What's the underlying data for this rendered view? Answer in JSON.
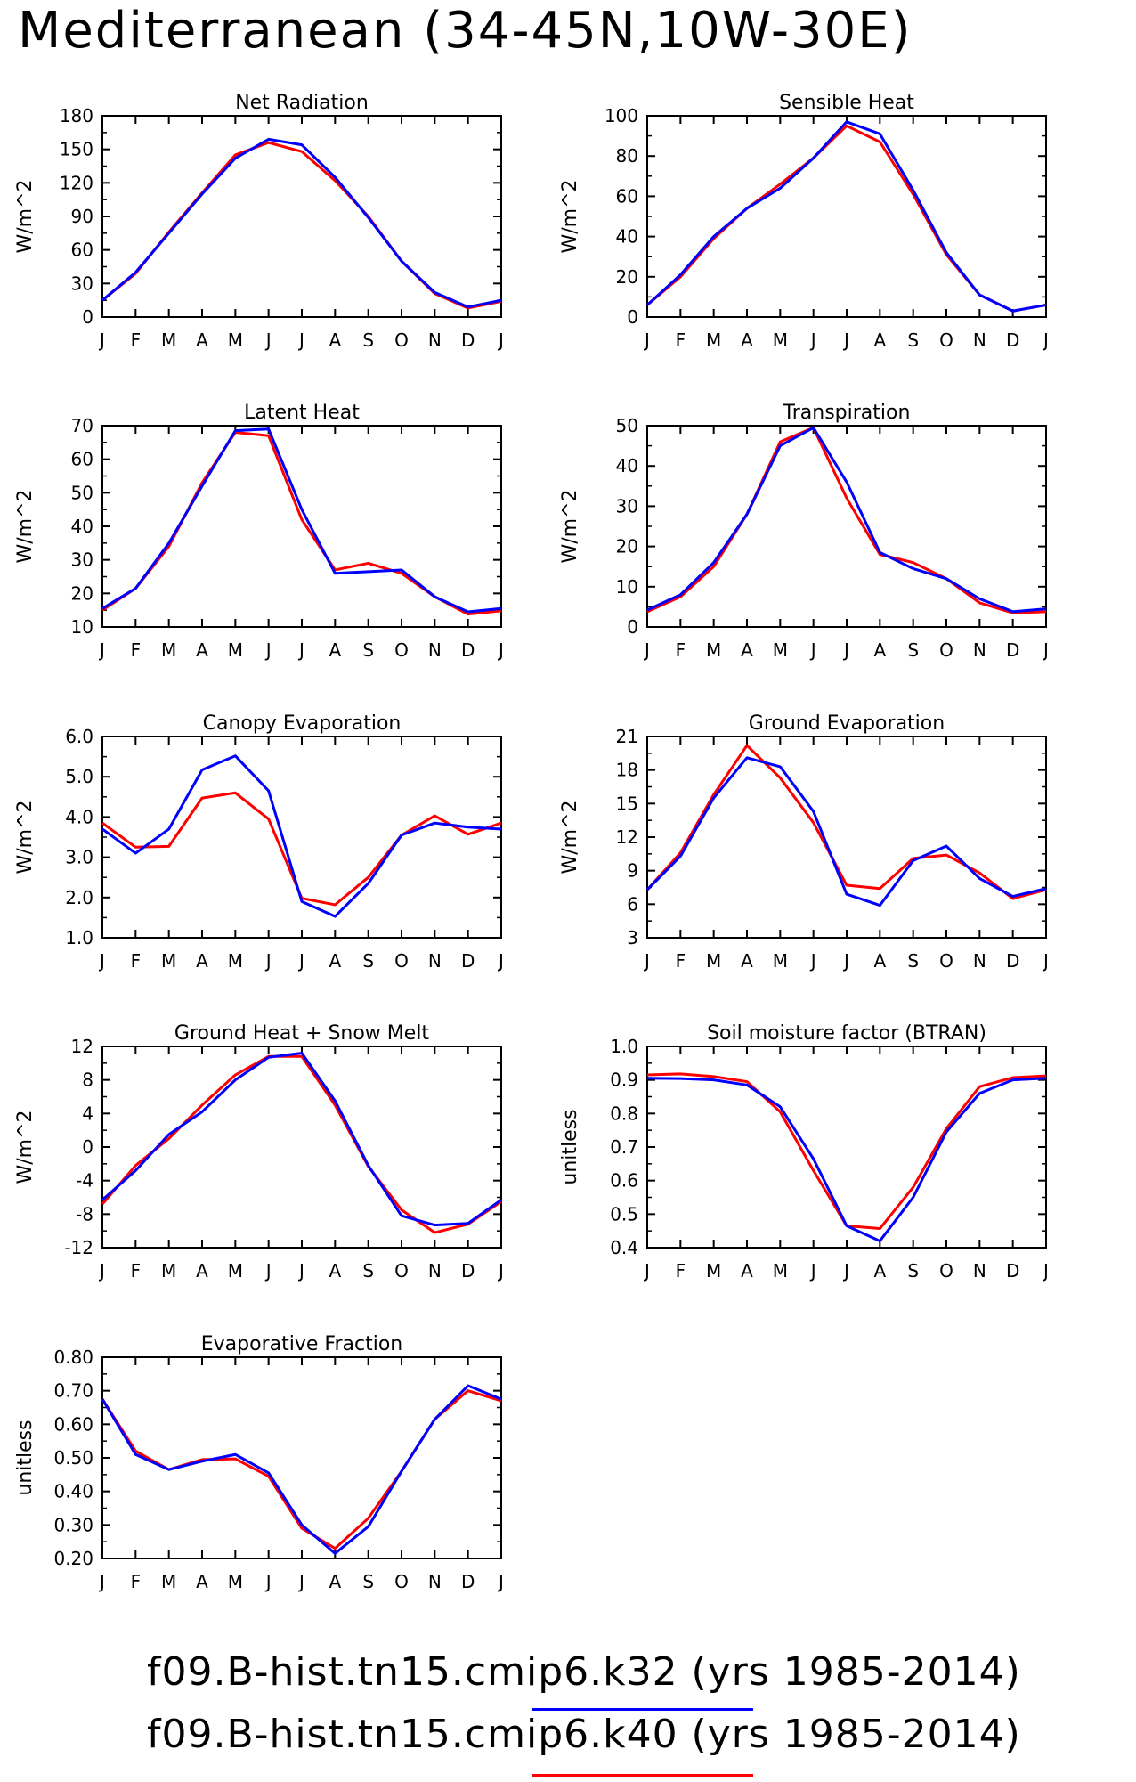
{
  "title": "Mediterranean (34-45N,10W-30E)",
  "colors": {
    "k40": "#ff0000",
    "k32": "#0000ff"
  },
  "legend": [
    {
      "label": "f09.B-hist.tn15.cmip6.k32 (yrs 1985-2014)",
      "color": "#0000ff"
    },
    {
      "label": "f09.B-hist.tn15.cmip6.k40 (yrs 1985-2014)",
      "color": "#ff0000"
    }
  ],
  "chart_data": [
    {
      "type": "line",
      "title": "Net Radiation",
      "ylabel": "W/m^2",
      "categories": [
        "J",
        "F",
        "M",
        "A",
        "M",
        "J",
        "J",
        "A",
        "S",
        "O",
        "N",
        "D",
        "J"
      ],
      "ylim": [
        0,
        180
      ],
      "yticks": [
        "0",
        "30",
        "60",
        "90",
        "120",
        "150",
        "180"
      ],
      "series": [
        {
          "color": "#ff0000",
          "values": [
            15,
            39,
            76,
            111,
            145,
            156,
            148,
            122,
            90,
            50,
            21,
            8,
            14
          ]
        },
        {
          "color": "#0000ff",
          "values": [
            15,
            40,
            75,
            110,
            142,
            159,
            154,
            125,
            89,
            50,
            22,
            9,
            15
          ]
        }
      ]
    },
    {
      "type": "line",
      "title": "Sensible Heat",
      "ylabel": "W/m^2",
      "categories": [
        "J",
        "F",
        "M",
        "A",
        "M",
        "J",
        "J",
        "A",
        "S",
        "O",
        "N",
        "D",
        "J"
      ],
      "ylim": [
        0,
        100
      ],
      "yticks": [
        "0",
        "20",
        "40",
        "60",
        "80",
        "100"
      ],
      "series": [
        {
          "color": "#ff0000",
          "values": [
            6,
            20,
            39,
            54,
            66,
            79,
            95,
            87,
            61,
            31,
            11,
            3,
            6
          ]
        },
        {
          "color": "#0000ff",
          "values": [
            6,
            21,
            40,
            54,
            64,
            79,
            97,
            91,
            63,
            32,
            11,
            3,
            6
          ]
        }
      ]
    },
    {
      "type": "line",
      "title": "Latent Heat",
      "ylabel": "W/m^2",
      "categories": [
        "J",
        "F",
        "M",
        "A",
        "M",
        "J",
        "J",
        "A",
        "S",
        "O",
        "N",
        "D",
        "J"
      ],
      "ylim": [
        10,
        70
      ],
      "yticks": [
        "10",
        "20",
        "30",
        "40",
        "50",
        "60",
        "70"
      ],
      "series": [
        {
          "color": "#ff0000",
          "values": [
            15,
            21.5,
            34,
            53,
            68,
            67,
            42,
            27,
            29,
            26,
            19,
            13.8,
            14.8
          ]
        },
        {
          "color": "#0000ff",
          "values": [
            15.5,
            21.5,
            35,
            52,
            68.5,
            69,
            45,
            26,
            26.5,
            27,
            19,
            14.5,
            15.5
          ]
        }
      ]
    },
    {
      "type": "line",
      "title": "Transpiration",
      "ylabel": "W/m^2",
      "categories": [
        "J",
        "F",
        "M",
        "A",
        "M",
        "J",
        "J",
        "A",
        "S",
        "O",
        "N",
        "D",
        "J"
      ],
      "ylim": [
        0,
        50
      ],
      "yticks": [
        "0",
        "10",
        "20",
        "30",
        "40",
        "50"
      ],
      "series": [
        {
          "color": "#ff0000",
          "values": [
            3.8,
            7.5,
            15,
            28,
            46,
            49.5,
            32,
            18,
            16,
            12,
            6,
            3.5,
            3.8
          ]
        },
        {
          "color": "#0000ff",
          "values": [
            4.2,
            8,
            16,
            28,
            45,
            49.5,
            36,
            18.5,
            14.5,
            12,
            7,
            3.8,
            4.5
          ]
        }
      ]
    },
    {
      "type": "line",
      "title": "Canopy Evaporation",
      "ylabel": "W/m^2",
      "categories": [
        "J",
        "F",
        "M",
        "A",
        "M",
        "J",
        "J",
        "A",
        "S",
        "O",
        "N",
        "D",
        "J"
      ],
      "ylim": [
        1.0,
        6.0
      ],
      "yticks": [
        "1.0",
        "2.0",
        "3.0",
        "4.0",
        "5.0",
        "6.0"
      ],
      "series": [
        {
          "color": "#ff0000",
          "values": [
            3.85,
            3.25,
            3.27,
            4.47,
            4.6,
            3.95,
            1.98,
            1.82,
            2.5,
            3.55,
            4.03,
            3.57,
            3.85
          ]
        },
        {
          "color": "#0000ff",
          "values": [
            3.7,
            3.1,
            3.7,
            5.17,
            5.52,
            4.65,
            1.9,
            1.53,
            2.35,
            3.55,
            3.85,
            3.75,
            3.7
          ]
        }
      ]
    },
    {
      "type": "line",
      "title": "Ground Evaporation",
      "ylabel": "W/m^2",
      "categories": [
        "J",
        "F",
        "M",
        "A",
        "M",
        "J",
        "J",
        "A",
        "S",
        "O",
        "N",
        "D",
        "J"
      ],
      "ylim": [
        3,
        21
      ],
      "yticks": [
        "3",
        "6",
        "9",
        "12",
        "15",
        "18",
        "21"
      ],
      "series": [
        {
          "color": "#ff0000",
          "values": [
            7.3,
            10.6,
            15.8,
            20.2,
            17.3,
            13.3,
            7.7,
            7.4,
            10.1,
            10.4,
            8.8,
            6.5,
            7.3
          ]
        },
        {
          "color": "#0000ff",
          "values": [
            7.3,
            10.3,
            15.5,
            19.1,
            18.3,
            14.3,
            6.9,
            5.9,
            9.9,
            11.2,
            8.3,
            6.7,
            7.4
          ]
        }
      ]
    },
    {
      "type": "line",
      "title": "Ground Heat + Snow Melt",
      "ylabel": "W/m^2",
      "categories": [
        "J",
        "F",
        "M",
        "A",
        "M",
        "J",
        "J",
        "A",
        "S",
        "O",
        "N",
        "D",
        "J"
      ],
      "ylim": [
        -12,
        12
      ],
      "yticks": [
        "-12",
        "-8",
        "-4",
        "0",
        "4",
        "8",
        "12"
      ],
      "series": [
        {
          "color": "#ff0000",
          "values": [
            -6.8,
            -2.2,
            1,
            5,
            8.6,
            10.8,
            10.8,
            5,
            -2.3,
            -7.5,
            -10.2,
            -9.2,
            -6.5
          ]
        },
        {
          "color": "#0000ff",
          "values": [
            -6.3,
            -2.8,
            1.5,
            4.2,
            8,
            10.7,
            11.2,
            5.5,
            -2.2,
            -8.2,
            -9.3,
            -9.1,
            -6.3
          ]
        }
      ]
    },
    {
      "type": "line",
      "title": "Soil moisture factor (BTRAN)",
      "ylabel": "unitless",
      "categories": [
        "J",
        "F",
        "M",
        "A",
        "M",
        "J",
        "J",
        "A",
        "S",
        "O",
        "N",
        "D",
        "J"
      ],
      "ylim": [
        0.4,
        1.0
      ],
      "yticks": [
        "0.4",
        "0.5",
        "0.6",
        "0.7",
        "0.8",
        "0.9",
        "1.0"
      ],
      "series": [
        {
          "color": "#ff0000",
          "values": [
            0.915,
            0.918,
            0.91,
            0.895,
            0.805,
            0.63,
            0.465,
            0.457,
            0.58,
            0.755,
            0.88,
            0.907,
            0.912
          ]
        },
        {
          "color": "#0000ff",
          "values": [
            0.905,
            0.904,
            0.9,
            0.885,
            0.82,
            0.665,
            0.465,
            0.42,
            0.55,
            0.745,
            0.86,
            0.9,
            0.905
          ]
        }
      ]
    },
    {
      "type": "line",
      "title": "Evaporative Fraction",
      "ylabel": "unitless",
      "categories": [
        "J",
        "F",
        "M",
        "A",
        "M",
        "J",
        "J",
        "A",
        "S",
        "O",
        "N",
        "D",
        "J"
      ],
      "ylim": [
        0.2,
        0.8
      ],
      "yticks": [
        "0.20",
        "0.30",
        "0.40",
        "0.50",
        "0.60",
        "0.70",
        "0.80"
      ],
      "series": [
        {
          "color": "#ff0000",
          "values": [
            0.675,
            0.52,
            0.465,
            0.495,
            0.497,
            0.445,
            0.29,
            0.23,
            0.32,
            0.46,
            0.615,
            0.7,
            0.67
          ]
        },
        {
          "color": "#0000ff",
          "values": [
            0.675,
            0.51,
            0.465,
            0.49,
            0.51,
            0.455,
            0.3,
            0.215,
            0.295,
            0.46,
            0.615,
            0.715,
            0.675
          ]
        }
      ]
    }
  ]
}
